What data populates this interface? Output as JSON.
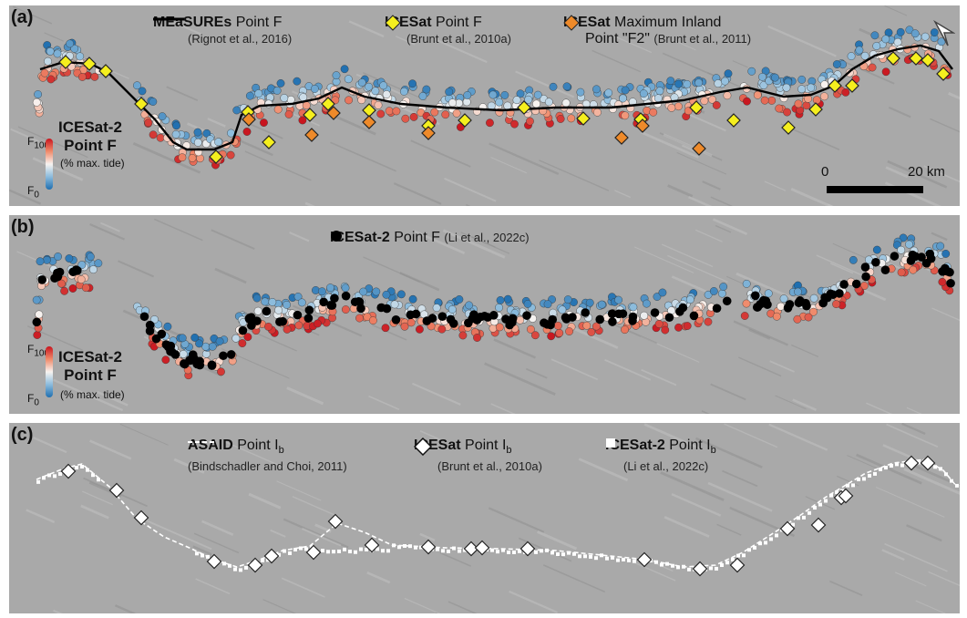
{
  "panels": [
    {
      "label": "(a)",
      "legend": [
        {
          "title_bold": "MEaSUREs",
          "title_rest": " Point F",
          "ref": "(Rignot et al., 2016)",
          "symbol": "line"
        },
        {
          "title_bold": "ICESat",
          "title_rest": " Point F",
          "ref": "(Brunt et al., 2010a)",
          "symbol": "yellow-diamond"
        },
        {
          "title_bold": "ICESat",
          "title_rest": " Maximum Inland",
          "line2": "Point \"F2\"",
          "ref": "(Brunt et al., 2011)",
          "symbol": "orange-diamond"
        }
      ],
      "colorbar": {
        "title_line1": "ICESat-2",
        "title_line2": "Point F",
        "subtitle": "(% max. tide)",
        "top_label": "F",
        "top_sub": "100",
        "bottom_label": "F",
        "bottom_sub": "0"
      },
      "scale": {
        "left_label": "0",
        "right_label": "20 km"
      }
    },
    {
      "label": "(b)",
      "legend": [
        {
          "title_bold": "ICESat-2",
          "title_rest": " Point F",
          "ref": "(Li et al., 2022c)",
          "symbol": "black-dot"
        }
      ],
      "colorbar": {
        "title_line1": "ICESat-2",
        "title_line2": "Point F",
        "subtitle": "(% max. tide)",
        "top_label": "F",
        "top_sub": "100",
        "bottom_label": "F",
        "bottom_sub": "0"
      }
    },
    {
      "label": "(c)",
      "legend": [
        {
          "title_bold": "ASAID",
          "title_rest": " Point I",
          "title_sub": "b",
          "ref": "(Bindschadler and Choi, 2011)",
          "symbol": "dashed-line"
        },
        {
          "title_bold": "ICESat",
          "title_rest": " Point I",
          "title_sub": "b",
          "ref": "(Brunt et al., 2010a)",
          "symbol": "white-diamond"
        },
        {
          "title_bold": "ICESat-2",
          "title_rest": " Point I",
          "title_sub": "b",
          "ref": "(Li et al., 2022c)",
          "symbol": "white-square"
        }
      ]
    }
  ],
  "colors": {
    "hillshade": "#a9a9a9",
    "yellow_diamond": "#f5ef1e",
    "orange_diamond": "#ee8a2a",
    "colormap_high": "#c8141e",
    "colormap_mid": "#f7f3f0",
    "colormap_low": "#1f6fb0"
  },
  "icons": {
    "north_arrow": "north-arrow-icon"
  }
}
